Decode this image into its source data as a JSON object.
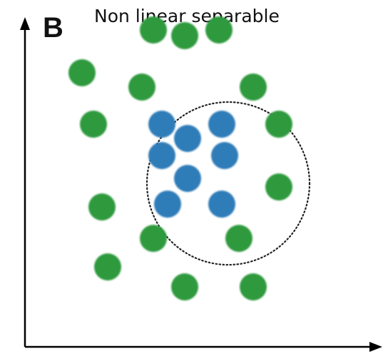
{
  "panel_label": "B",
  "title": "Non linear separable",
  "colors": {
    "outer_class": "#2e9a3e",
    "inner_class": "#2f7bb8",
    "axes": "#000000",
    "boundary": "#222222"
  },
  "boundary_style": "dotted circle",
  "chart_data": {
    "type": "scatter",
    "title": "Non linear separable",
    "xlabel": "",
    "ylabel": "",
    "grid": false,
    "axis_ticks": false,
    "series": [
      {
        "color": "#2e9a3e",
        "points": [
          [
            2.0,
            9.6
          ],
          [
            4.5,
            11.1
          ],
          [
            5.6,
            10.9
          ],
          [
            6.8,
            11.1
          ],
          [
            4.1,
            9.1
          ],
          [
            8.0,
            9.1
          ],
          [
            2.4,
            7.8
          ],
          [
            8.9,
            7.8
          ],
          [
            8.9,
            5.6
          ],
          [
            2.7,
            4.9
          ],
          [
            4.5,
            3.8
          ],
          [
            7.5,
            3.8
          ],
          [
            2.9,
            2.8
          ],
          [
            5.6,
            2.1
          ],
          [
            8.0,
            2.1
          ]
        ]
      },
      {
        "color": "#2f7bb8",
        "points": [
          [
            4.8,
            7.8
          ],
          [
            5.7,
            7.3
          ],
          [
            6.9,
            7.8
          ],
          [
            4.8,
            6.7
          ],
          [
            7.0,
            6.7
          ],
          [
            5.7,
            5.9
          ],
          [
            5.0,
            5.0
          ],
          [
            6.9,
            5.0
          ]
        ]
      }
    ]
  }
}
